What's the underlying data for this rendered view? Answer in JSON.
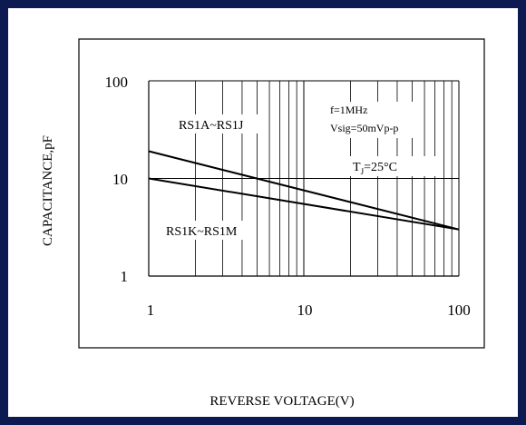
{
  "chart_data": {
    "type": "line",
    "xscale": "log",
    "yscale": "log",
    "xlim": [
      1,
      100
    ],
    "ylim": [
      1,
      100
    ],
    "xticks": [
      "1",
      "10",
      "100"
    ],
    "yticks": [
      "100",
      "10",
      "1"
    ],
    "xlabel": "REVERSE VOLTAGE(V)",
    "ylabel": "CAPACITANCE,pF",
    "grid": true,
    "series": [
      {
        "name": "RS1A~RS1J",
        "x": [
          1,
          100
        ],
        "y": [
          19,
          3
        ]
      },
      {
        "name": "RS1K~RS1M",
        "x": [
          1,
          100
        ],
        "y": [
          10,
          3
        ]
      }
    ],
    "annotations": {
      "freq": "f=1MHz",
      "vsig": "Vsig=50mVp-p",
      "temp_main": "T",
      "temp_sub": "J",
      "temp_value": "=25°C"
    },
    "colors": {
      "frame": "#0d1a52",
      "line": "#000000",
      "grid": "#000000"
    }
  }
}
